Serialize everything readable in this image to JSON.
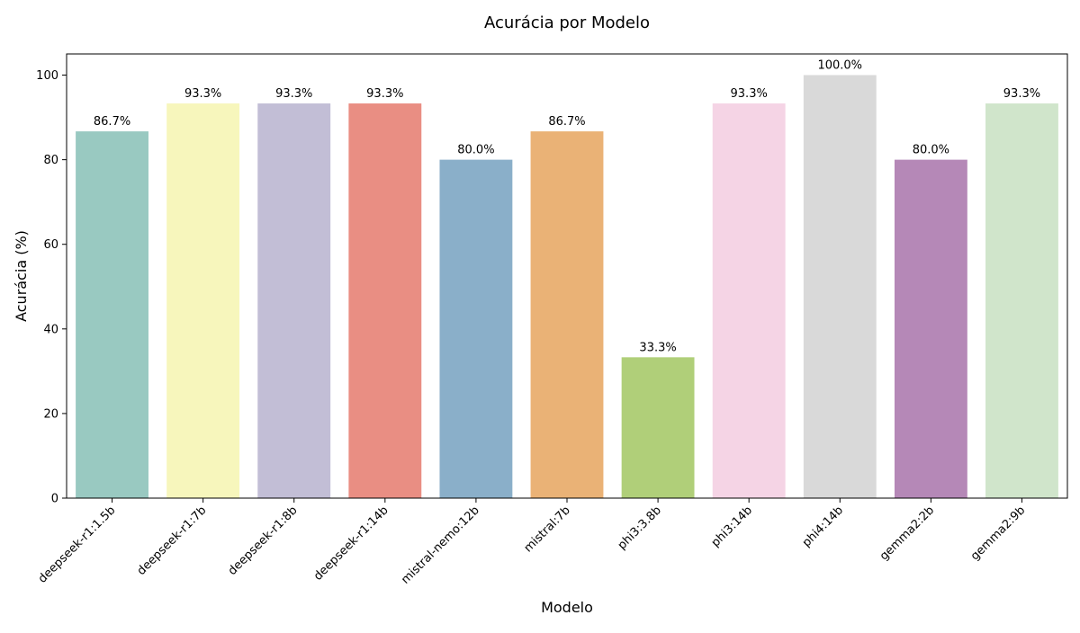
{
  "chart_data": {
    "type": "bar",
    "title": "Acurácia por Modelo",
    "xlabel": "Modelo",
    "ylabel": "Acurácia (%)",
    "ylim": [
      0,
      105
    ],
    "yticks": [
      0,
      20,
      40,
      60,
      80,
      100
    ],
    "grid": false,
    "categories": [
      "deepseek-r1:1.5b",
      "deepseek-r1:7b",
      "deepseek-r1:8b",
      "deepseek-r1:14b",
      "mistral-nemo:12b",
      "mistral:7b",
      "phi3:3.8b",
      "phi3:14b",
      "phi4:14b",
      "gemma2:2b",
      "gemma2:9b"
    ],
    "values": [
      86.7,
      93.3,
      93.3,
      93.3,
      80.0,
      86.7,
      33.3,
      93.3,
      100.0,
      80.0,
      93.3
    ],
    "value_labels": [
      "86.7%",
      "93.3%",
      "93.3%",
      "93.3%",
      "80.0%",
      "86.7%",
      "33.3%",
      "93.3%",
      "100.0%",
      "80.0%",
      "93.3%"
    ],
    "colors": [
      "#99c9c1",
      "#f7f6bc",
      "#c2bed6",
      "#e98e83",
      "#8aafc9",
      "#eab276",
      "#b0cf79",
      "#f5d4e5",
      "#d9d9d9",
      "#b588b7",
      "#d0e5cb"
    ]
  }
}
